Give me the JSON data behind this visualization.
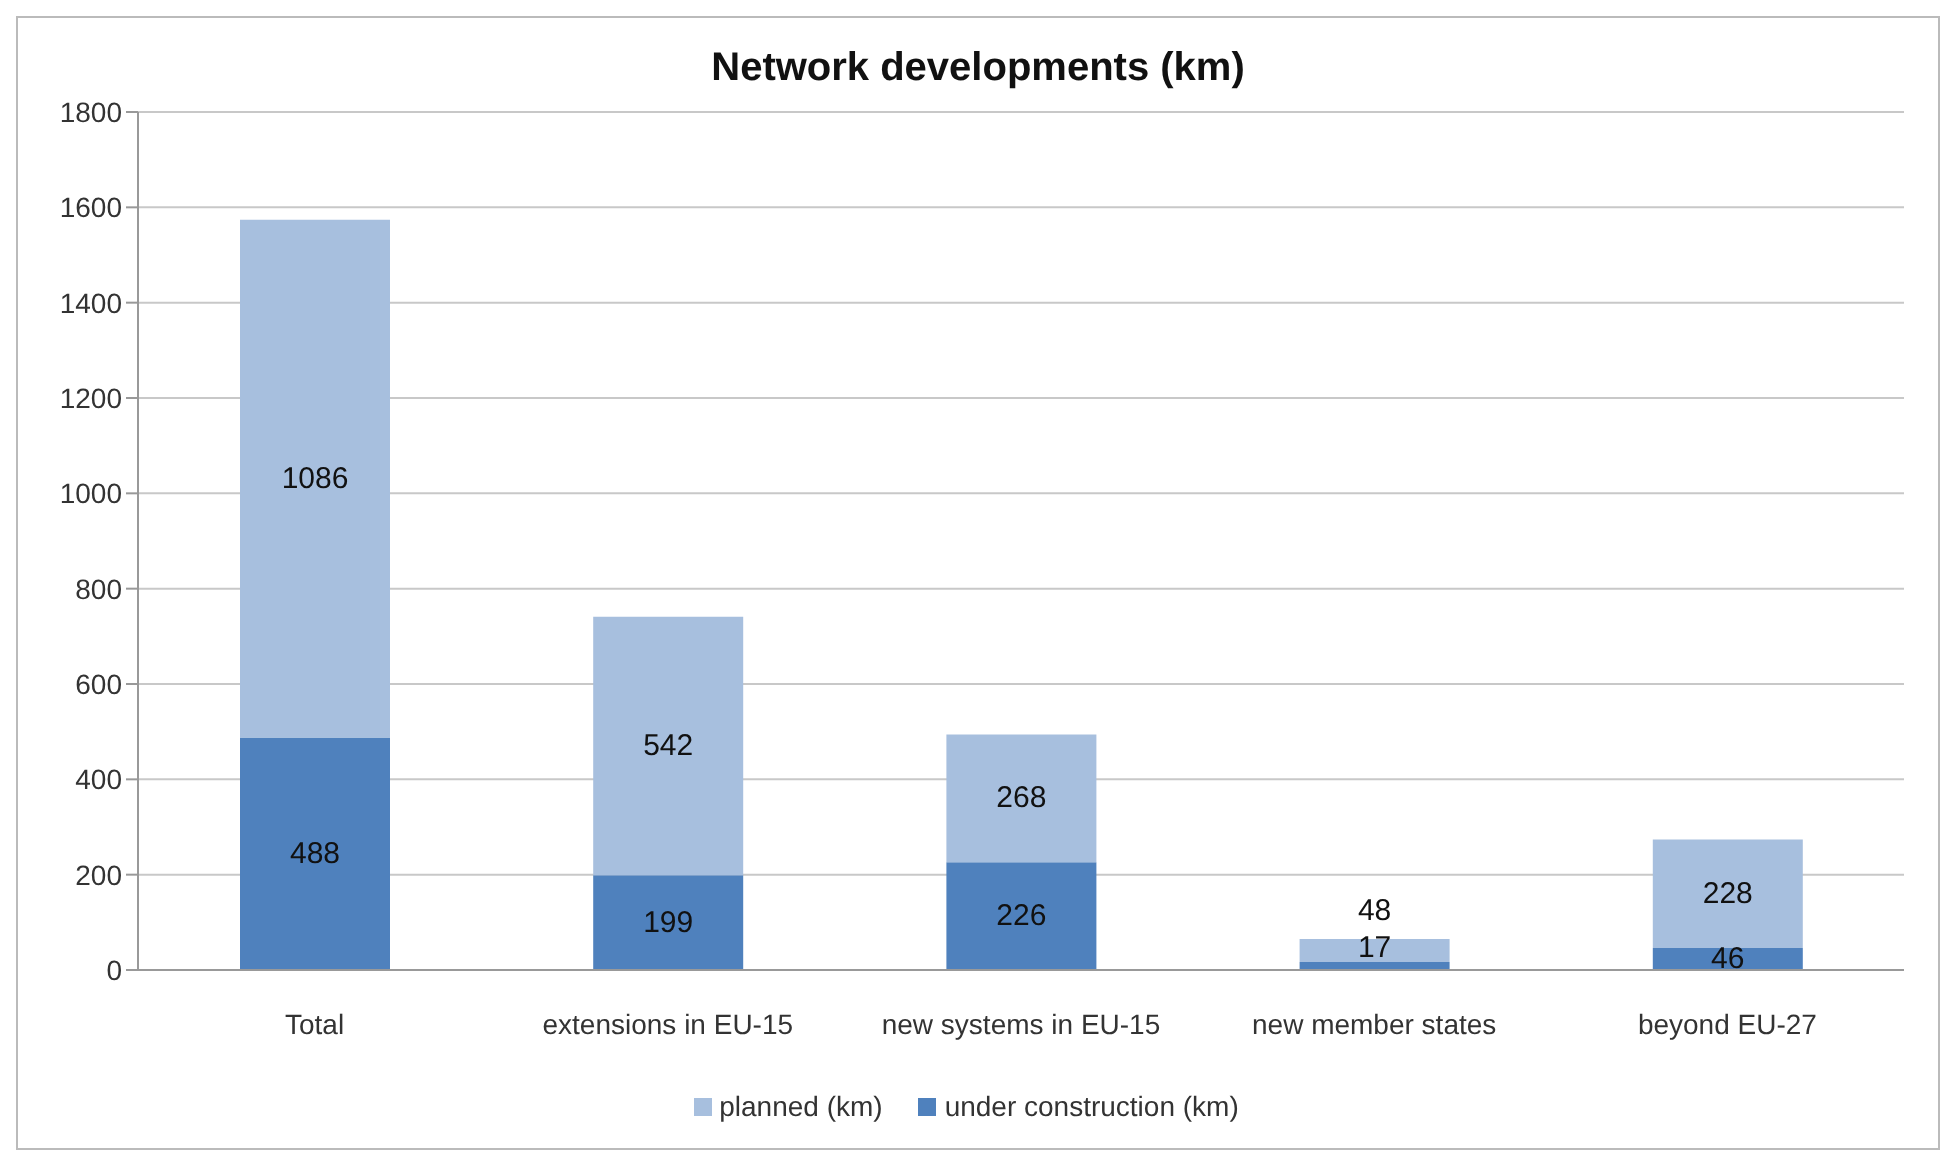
{
  "chart_data": {
    "type": "bar",
    "title": "Network developments (km)",
    "categories": [
      "Total",
      "extensions in EU-15",
      "new systems in EU-15",
      "new member states",
      "beyond EU-27"
    ],
    "series": [
      {
        "name": "under construction (km)",
        "color": "#4f81bd",
        "values": [
          488,
          199,
          226,
          17,
          46
        ]
      },
      {
        "name": "planned (km)",
        "color": "#a7bfde",
        "values": [
          1086,
          542,
          268,
          48,
          228
        ]
      }
    ],
    "stacked": true,
    "data_labels": true,
    "ylim": [
      0,
      1800
    ],
    "yticks": [
      0,
      200,
      400,
      600,
      800,
      1000,
      1200,
      1400,
      1600,
      1800
    ],
    "grid": "y",
    "legend": "bottom"
  }
}
